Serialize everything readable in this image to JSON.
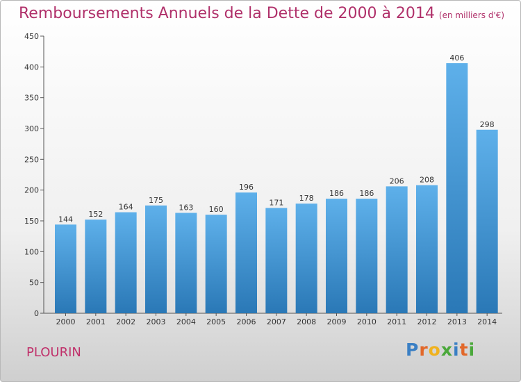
{
  "header": {
    "title": "Remboursements Annuels de la Dette de 2000 à 2014",
    "subtitle": "(en milliers d'€)"
  },
  "footer": {
    "commune": "PLOURIN",
    "logo_letters": [
      "P",
      "r",
      "o",
      "x",
      "i",
      "t",
      "i"
    ],
    "logo_colors": [
      "#3a7fc4",
      "#e2682a",
      "#f0b21e",
      "#4aa83a",
      "#3a7fc4",
      "#e2682a",
      "#4aa83a"
    ]
  },
  "colors": {
    "title": "#b0306a",
    "bar_top": "#5eb0ea",
    "bar_bottom": "#2a78b6"
  },
  "chart_data": {
    "type": "bar",
    "title": "Remboursements Annuels de la Dette de 2000 à 2014",
    "subtitle": "(en milliers d'€)",
    "categories": [
      "2000",
      "2001",
      "2002",
      "2003",
      "2004",
      "2005",
      "2006",
      "2007",
      "2008",
      "2009",
      "2010",
      "2011",
      "2012",
      "2013",
      "2014"
    ],
    "values": [
      144,
      152,
      164,
      175,
      163,
      160,
      196,
      171,
      178,
      186,
      186,
      206,
      208,
      406,
      298
    ],
    "ylim": [
      0,
      450
    ],
    "yticks": [
      0,
      50,
      100,
      150,
      200,
      250,
      300,
      350,
      400,
      450
    ],
    "grid": false,
    "xlabel": "",
    "ylabel": ""
  }
}
